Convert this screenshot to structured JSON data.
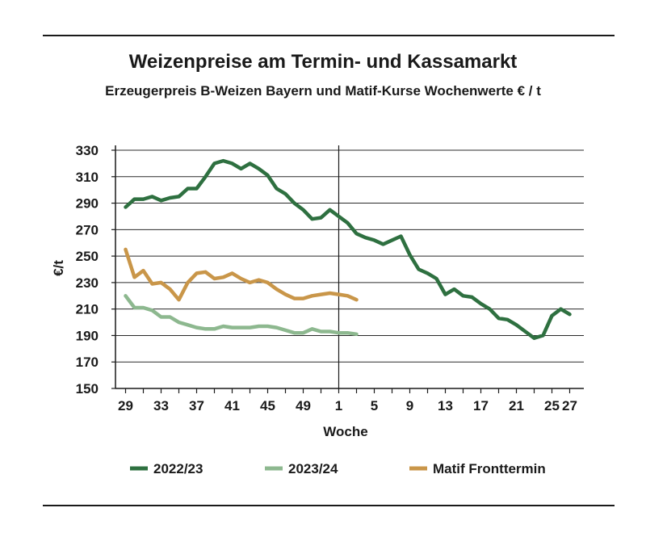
{
  "chart_data": {
    "type": "line",
    "title": "Weizenpreise am Termin- und Kassamarkt",
    "subtitle": "Erzeugerpreis B-Weizen Bayern und Matif-Kurse Wochenwerte € / t",
    "xlabel": "Woche",
    "ylabel": "€/t",
    "ylim": [
      150,
      330
    ],
    "yticks": [
      150,
      170,
      190,
      210,
      230,
      250,
      270,
      290,
      310,
      330
    ],
    "xtick_labels": [
      "29",
      "33",
      "37",
      "41",
      "45",
      "49",
      "1",
      "5",
      "9",
      "13",
      "17",
      "21",
      "25",
      "27"
    ],
    "x_week_order": [
      29,
      30,
      31,
      32,
      33,
      34,
      35,
      36,
      37,
      38,
      39,
      40,
      41,
      42,
      43,
      44,
      45,
      46,
      47,
      48,
      49,
      50,
      51,
      52,
      1,
      2,
      3,
      4,
      5,
      6,
      7,
      8,
      9,
      10,
      11,
      12,
      13,
      14,
      15,
      16,
      17,
      18,
      19,
      20,
      21,
      22,
      23,
      24,
      25,
      26,
      27
    ],
    "grid": "horizontal",
    "legend_position": "bottom",
    "series": [
      {
        "name": "2022/23",
        "color": "#2e7040",
        "x": [
          29,
          30,
          31,
          32,
          33,
          34,
          35,
          36,
          37,
          38,
          39,
          40,
          41,
          42,
          43,
          44,
          45,
          46,
          47,
          48,
          49,
          50,
          51,
          52,
          1,
          2,
          3,
          4,
          5,
          6,
          7,
          8,
          9,
          10,
          11,
          12,
          13,
          14,
          15,
          16,
          17,
          18,
          19,
          20,
          21,
          22,
          23,
          24,
          25,
          26,
          27
        ],
        "values": [
          287,
          293,
          293,
          295,
          292,
          294,
          295,
          301,
          301,
          310,
          320,
          322,
          320,
          316,
          320,
          316,
          311,
          301,
          297,
          290,
          285,
          278,
          279,
          285,
          280,
          275,
          267,
          264,
          262,
          259,
          262,
          265,
          251,
          240,
          237,
          233,
          221,
          225,
          220,
          219,
          214,
          210,
          203,
          202,
          198,
          193,
          188,
          190,
          205,
          210,
          206
        ]
      },
      {
        "name": "2023/24",
        "color": "#8db88f",
        "x": [
          29,
          30,
          31,
          32,
          33,
          34,
          35,
          36,
          37,
          38,
          39,
          40,
          41,
          42,
          43,
          44,
          45,
          46,
          47,
          48,
          49,
          50,
          51,
          52,
          1,
          2,
          3
        ],
        "values": [
          220,
          211,
          211,
          209,
          204,
          204,
          200,
          198,
          196,
          195,
          195,
          197,
          196,
          196,
          196,
          197,
          197,
          196,
          194,
          192,
          192,
          195,
          193,
          193,
          192,
          192,
          191
        ]
      },
      {
        "name": "Matif Fronttermin",
        "color": "#c99649",
        "x": [
          29,
          30,
          31,
          32,
          33,
          34,
          35,
          36,
          37,
          38,
          39,
          40,
          41,
          42,
          43,
          44,
          45,
          46,
          47,
          48,
          49,
          50,
          51,
          52,
          1,
          2,
          3
        ],
        "values": [
          255,
          234,
          239,
          229,
          230,
          225,
          217,
          230,
          237,
          238,
          233,
          234,
          237,
          233,
          230,
          232,
          230,
          225,
          221,
          218,
          218,
          220,
          221,
          222,
          221,
          220,
          217
        ]
      }
    ],
    "legend": [
      {
        "label": "2022/23",
        "color": "#2e7040"
      },
      {
        "label": "2023/24",
        "color": "#8db88f"
      },
      {
        "label": "Matif Fronttermin",
        "color": "#c99649"
      }
    ]
  }
}
